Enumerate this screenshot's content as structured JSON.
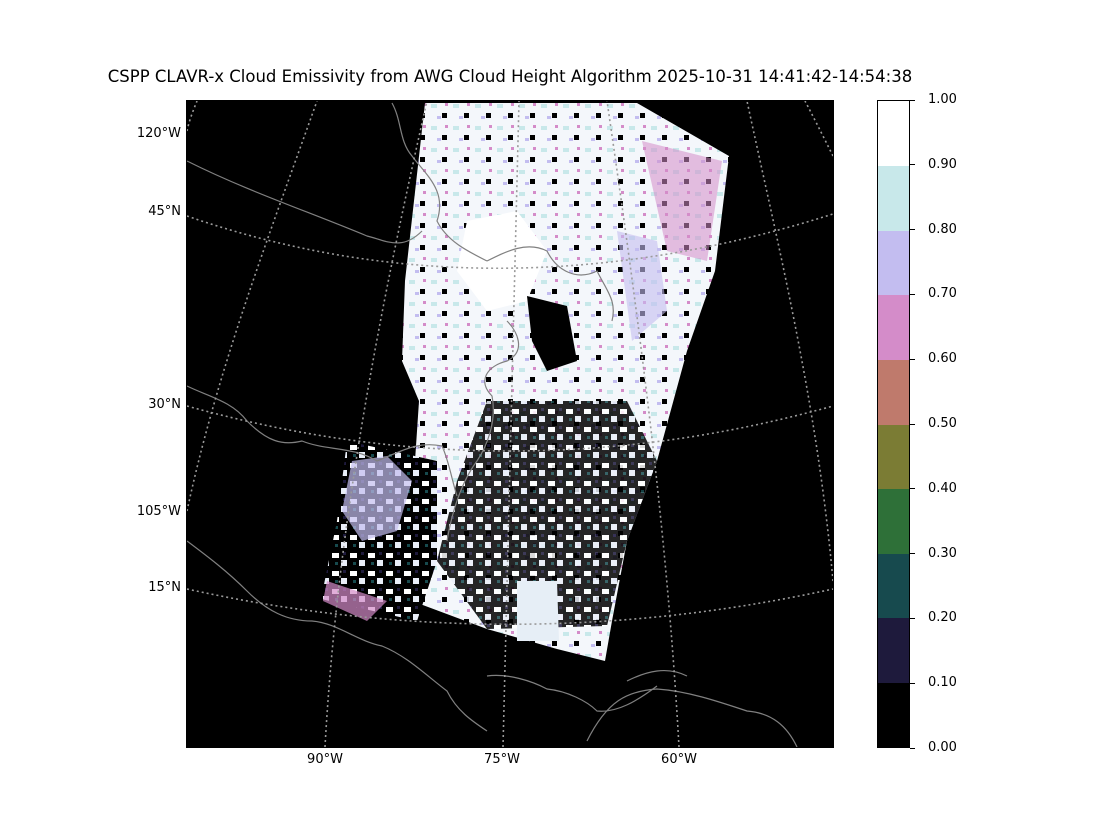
{
  "title": "CSPP CLAVR-x Cloud Emissivity from AWG Cloud Height Algorithm 2025-10-31 14:41:42-14:54:38",
  "map": {
    "lat_labels": [
      {
        "text": "120°W",
        "lat": 59.7
      },
      {
        "text": "45°N",
        "lat": 45
      },
      {
        "text": "30°N",
        "lat": 30
      },
      {
        "text": "105°W",
        "lat": 21.2
      },
      {
        "text": "15°N",
        "lat": 15
      }
    ],
    "lon_labels": [
      "90°W",
      "75°W",
      "60°W"
    ],
    "gridline_color": "#9a9a9a",
    "coastline_color": "#808080",
    "background_color": "#000000"
  },
  "colorbar": {
    "min": 0.0,
    "max": 1.0,
    "labels": [
      "1.00",
      "0.90",
      "0.80",
      "0.70",
      "0.60",
      "0.50",
      "0.40",
      "0.30",
      "0.20",
      "0.10",
      "0.00"
    ],
    "colors": [
      "#000000",
      "#1e1a3c",
      "#174a4e",
      "#2e7038",
      "#7b7c34",
      "#bf7a6c",
      "#d48cc9",
      "#c3bdf0",
      "#c8e8ea",
      "#ffffff"
    ]
  }
}
